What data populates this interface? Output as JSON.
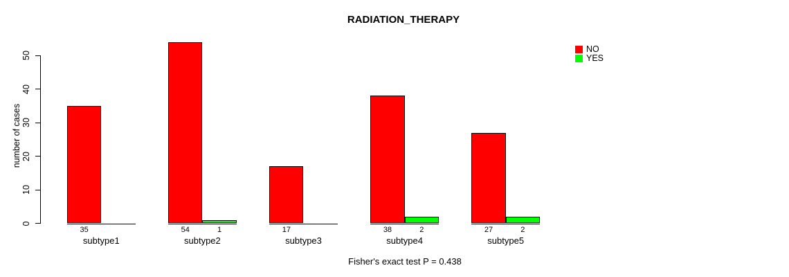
{
  "chart_data": {
    "type": "bar",
    "title": "RADIATION_THERAPY",
    "xlabel": "",
    "ylabel": "number of cases",
    "categories": [
      "subtype1",
      "subtype2",
      "subtype3",
      "subtype4",
      "subtype5"
    ],
    "series": [
      {
        "name": "NO",
        "color": "#ff0000",
        "values": [
          35,
          54,
          17,
          38,
          27
        ]
      },
      {
        "name": "YES",
        "color": "#00ff00",
        "values": [
          0,
          1,
          0,
          2,
          2
        ]
      }
    ],
    "bar_count_labels_shown_only_when_positive": true,
    "yticks": [
      0,
      10,
      20,
      30,
      40,
      50
    ],
    "ylim": [
      0,
      54
    ],
    "grid": false,
    "legend_position": "top-right",
    "legend": [
      "NO",
      "YES"
    ],
    "annotation": "Fisher's exact test P = 0.438"
  }
}
